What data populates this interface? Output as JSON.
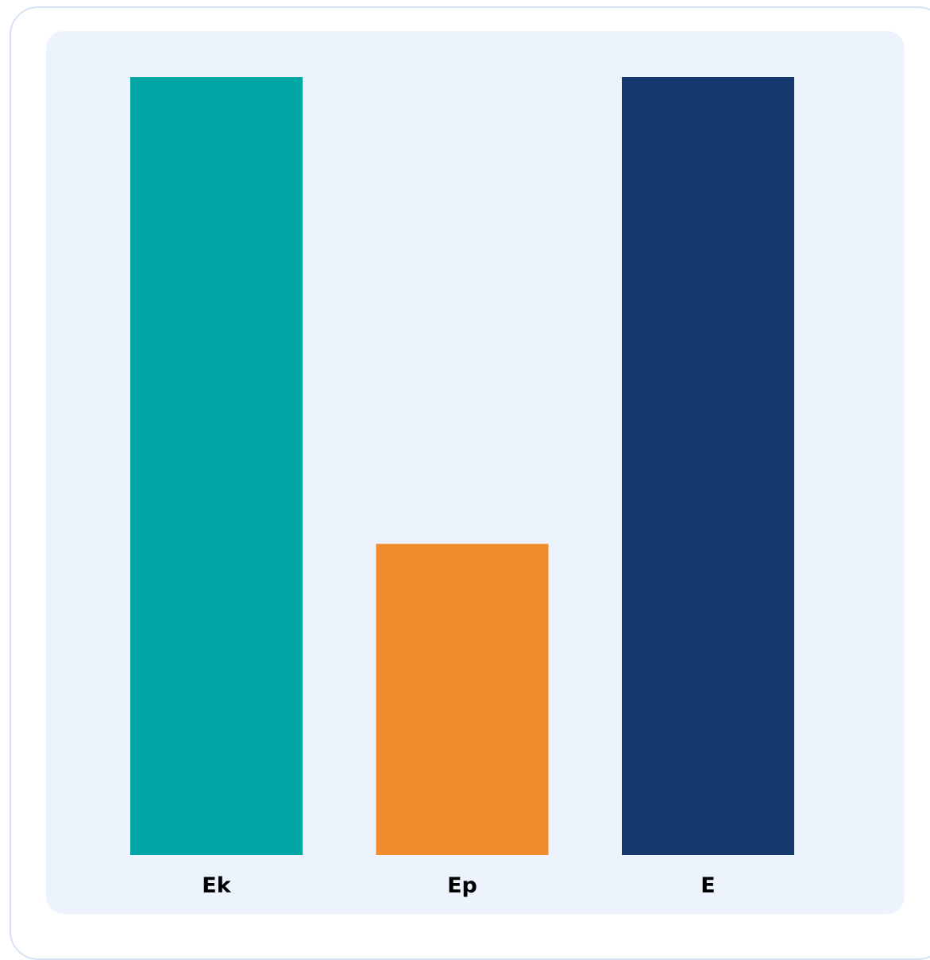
{
  "chart_data": {
    "type": "bar",
    "categories": [
      "Ek",
      "Ep",
      "E"
    ],
    "values": [
      100,
      40,
      100
    ],
    "colors": [
      "#00a5a5",
      "#f08c2a",
      "#143a6e"
    ],
    "ylim": [
      0,
      100
    ],
    "grid": false,
    "legend": "none"
  },
  "colors": {
    "panel_background": "#edf3fd",
    "card_border": "#d6e2f3"
  }
}
